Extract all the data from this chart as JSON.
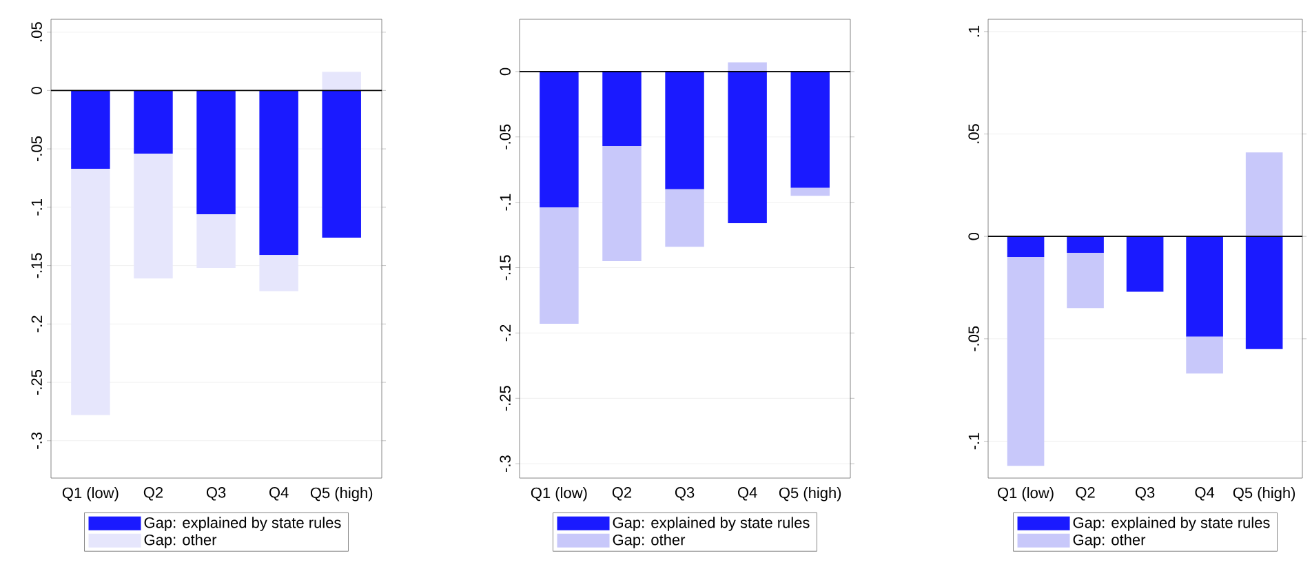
{
  "chart_data": [
    {
      "type": "bar",
      "stacked": true,
      "categories": [
        "Q1 (low)",
        "Q2",
        "Q3",
        "Q4",
        "Q5 (high)"
      ],
      "series": [
        {
          "name": "Gap: explained by state rules",
          "color": "#1a1aff",
          "values": [
            -0.067,
            -0.054,
            -0.106,
            -0.141,
            -0.126
          ]
        },
        {
          "name": "Gap: other",
          "color": "#e6e6fc",
          "values": [
            -0.211,
            -0.107,
            -0.046,
            -0.031,
            0.016
          ]
        }
      ],
      "ylim": [
        -0.332,
        0.061
      ],
      "yticks": [
        {
          "value": -0.3,
          "label": "-.3"
        },
        {
          "value": -0.25,
          "label": "-.25"
        },
        {
          "value": -0.2,
          "label": "-.2"
        },
        {
          "value": -0.15,
          "label": "-.15"
        },
        {
          "value": -0.1,
          "label": "-.1"
        },
        {
          "value": -0.05,
          "label": "-.05"
        },
        0,
        {
          "value": 0.05,
          "label": ".05"
        }
      ],
      "grid": "y",
      "legend": "bottom",
      "ref_lines": [
        {
          "axis": "y",
          "value": 0,
          "color": "#000000"
        }
      ]
    },
    {
      "type": "bar",
      "stacked": true,
      "categories": [
        "Q1 (low)",
        "Q2",
        "Q3",
        "Q4",
        "Q5 (high)"
      ],
      "series": [
        {
          "name": "Gap: explained by state rules",
          "color": "#1a1aff",
          "values": [
            -0.104,
            -0.057,
            -0.09,
            -0.116,
            -0.089
          ]
        },
        {
          "name": "Gap: other",
          "color": "#c8c8fa",
          "values": [
            -0.089,
            -0.088,
            -0.044,
            0.007,
            -0.006
          ]
        }
      ],
      "ylim": [
        -0.311,
        0.04
      ],
      "yticks": [
        {
          "value": -0.3,
          "label": "-.3"
        },
        {
          "value": -0.25,
          "label": "-.25"
        },
        {
          "value": -0.2,
          "label": "-.2"
        },
        {
          "value": -0.15,
          "label": "-.15"
        },
        {
          "value": -0.1,
          "label": "-.1"
        },
        {
          "value": -0.05,
          "label": "-.05"
        },
        0
      ],
      "grid": "y",
      "legend": "bottom",
      "ref_lines": [
        {
          "axis": "y",
          "value": 0,
          "color": "#000000"
        }
      ]
    },
    {
      "type": "bar",
      "stacked": true,
      "categories": [
        "Q1 (low)",
        "Q2",
        "Q3",
        "Q4",
        "Q5 (high)"
      ],
      "series": [
        {
          "name": "Gap: explained by state rules",
          "color": "#1a1aff",
          "values": [
            -0.01,
            -0.008,
            -0.027,
            -0.049,
            -0.055
          ]
        },
        {
          "name": "Gap: other",
          "color": "#c8c8fa",
          "values": [
            -0.102,
            -0.027,
            null,
            -0.018,
            0.041
          ]
        }
      ],
      "ylim": [
        -0.118,
        0.106
      ],
      "yticks": [
        {
          "value": -0.1,
          "label": "-.1"
        },
        {
          "value": -0.05,
          "label": "-.05"
        },
        0,
        {
          "value": 0.05,
          "label": ".05"
        },
        {
          "value": 0.1,
          "label": ".1"
        }
      ],
      "grid": "y",
      "legend": "bottom",
      "ref_lines": [
        {
          "axis": "y",
          "value": 0,
          "color": "#000000"
        }
      ]
    }
  ]
}
